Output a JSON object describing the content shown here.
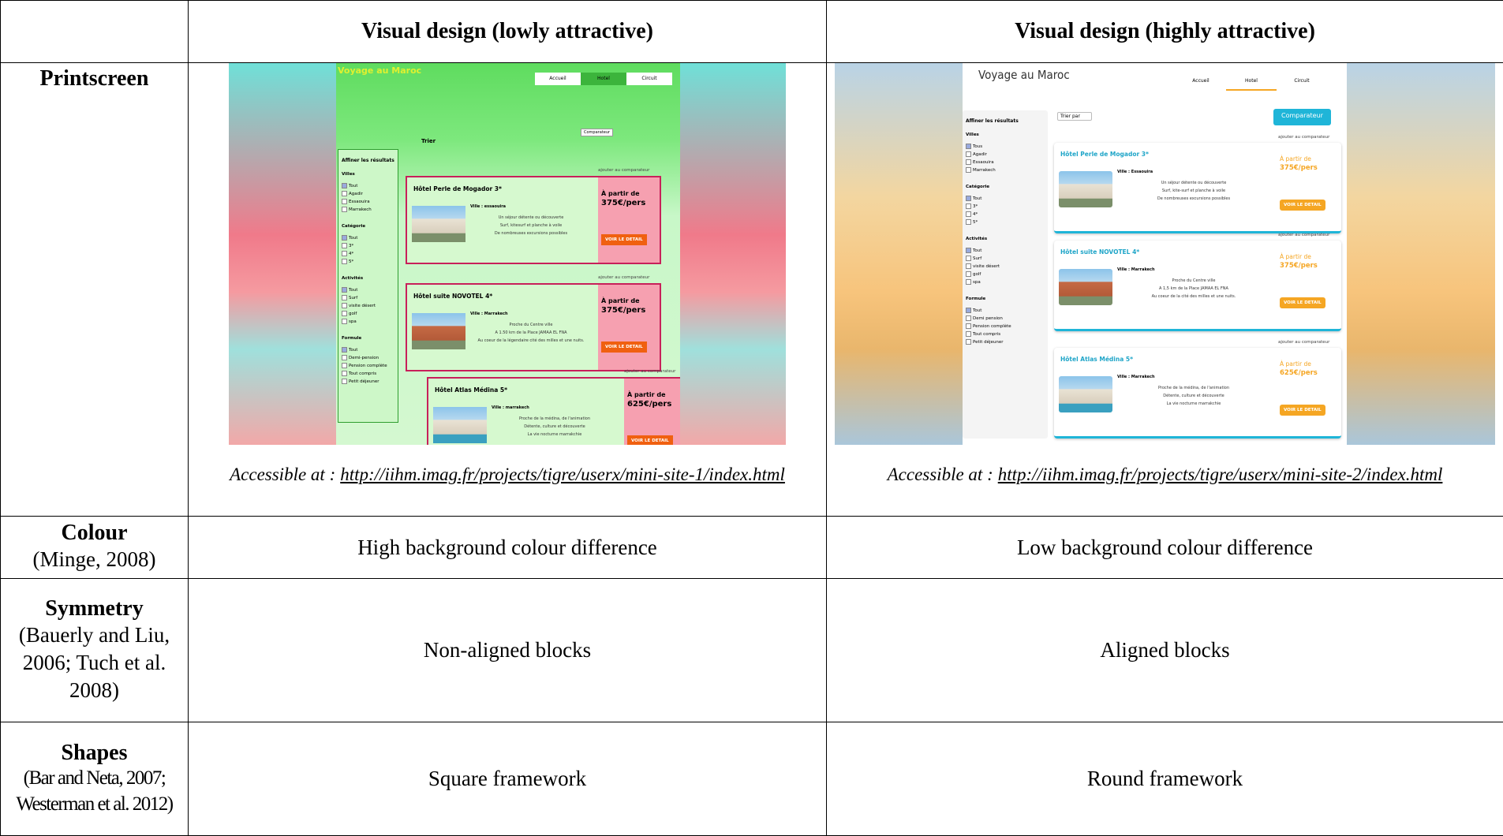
{
  "table": {
    "columns": [
      "Visual design (lowly attractive)",
      "Visual design (highly attractive)"
    ],
    "rows": [
      {
        "label": "Printscreen",
        "cells": [
          {
            "caption": "Accessible at :",
            "link": "http://iihm.imag.fr/projects/tigre/userx/mini-site-1/index.html"
          },
          {
            "caption": "Accessible at :",
            "link": "http://iihm.imag.fr/projects/tigre/userx/mini-site-2/index.html"
          }
        ]
      },
      {
        "label": "Colour",
        "citation": "(Minge, 2008)",
        "cells": [
          "High background colour difference",
          "Low background colour difference"
        ]
      },
      {
        "label": "Symmetry",
        "citation": "(Bauerly and Liu, 2006; Tuch et al. 2008)",
        "cells": [
          "Non-aligned blocks",
          "Aligned blocks"
        ]
      },
      {
        "label": "Shapes",
        "citation": "(Bar and Neta, 2007; Westerman et al. 2012)",
        "cells": [
          "Square framework",
          "Round framework"
        ]
      }
    ]
  },
  "screenshots": [
    {
      "site_title": "Voyage au Maroc",
      "nav": [
        "Accueil",
        "Hotel",
        "Circuit"
      ],
      "sort_label": "Trier",
      "compare_button": "Comparateur",
      "filter_title": "Affiner les résultats",
      "filter_groups": [
        {
          "title": "Villes",
          "options": [
            "Tout",
            "Agadir",
            "Essaouira",
            "Marrakech"
          ]
        },
        {
          "title": "Catégorie",
          "options": [
            "Tout",
            "3*",
            "4*",
            "5*"
          ]
        },
        {
          "title": "Activités",
          "options": [
            "Tout",
            "Surf",
            "visite désert",
            "golf",
            "spa"
          ]
        },
        {
          "title": "Formule",
          "options": [
            "Tout",
            "Demi-pension",
            "Pension complète",
            "Tout compris",
            "Petit déjeuner"
          ]
        }
      ],
      "compare_label": "ajouter au comparateur",
      "price_prefix": "À partir de",
      "detail_button": "VOIR LE DETAIL",
      "hotels": [
        {
          "name": "Hôtel Perle de Mogador 3*",
          "city": "Ville : essaouira",
          "price": "375€/pers",
          "features": [
            "Un séjour détente ou découverte",
            "Surf, kitesurf et planche à voile",
            "De nombreuses excursions possibles"
          ]
        },
        {
          "name": "Hôtel suite NOVOTEL 4*",
          "city": "Ville : Marrakech",
          "price": "375€/pers",
          "features": [
            "Proche du Centre ville",
            "A 1.50 km de la Place JAMAA EL FNA",
            "Au coeur de la légendaire cité des milles et une nuits."
          ]
        },
        {
          "name": "Hôtel Atlas Médina 5*",
          "city": "Ville : marrakech",
          "price": "625€/pers",
          "features": [
            "Proche de la médina, de l'animation",
            "Détente, culture et découverte",
            "La vie nocturne marrakchie"
          ]
        }
      ]
    },
    {
      "site_title": "Voyage au Maroc",
      "nav": [
        "Accueil",
        "Hotel",
        "Circuit"
      ],
      "sort_label": "Trier par",
      "compare_button": "Comparateur",
      "filter_title": "Affiner les résultats",
      "filter_groups": [
        {
          "title": "Villes",
          "options": [
            "Tous",
            "Agadir",
            "Essaouira",
            "Marrakech"
          ]
        },
        {
          "title": "Catégorie",
          "options": [
            "Tout",
            "3*",
            "4*",
            "5*"
          ]
        },
        {
          "title": "Activités",
          "options": [
            "Tout",
            "Surf",
            "visite désert",
            "golf",
            "spa"
          ]
        },
        {
          "title": "Formule",
          "options": [
            "Tout",
            "Demi pension",
            "Pension complète",
            "Tout compris",
            "Petit déjeuner"
          ]
        }
      ],
      "compare_label": "ajouter au comparateur",
      "price_prefix": "À partir de",
      "detail_button": "VOIR LE DETAIL",
      "hotels": [
        {
          "name": "Hôtel Perle de Mogador 3*",
          "city": "Ville : Essaouira",
          "price": "375€/pers",
          "features": [
            "Un séjour détente ou découverte",
            "Surf, kite-surf et planche à voile",
            "De nombreuses excursions possibles"
          ]
        },
        {
          "name": "Hôtel suite NOVOTEL 4*",
          "city": "Ville : Marrakech",
          "price": "375€/pers",
          "features": [
            "Proche du Centre ville",
            "A 1,5 km de la Place JAMAA EL FNA",
            "Au coeur de la cité des milles et une nuits."
          ]
        },
        {
          "name": "Hôtel Atlas Médina 5*",
          "city": "Ville : Marrakech",
          "price": "625€/pers",
          "features": [
            "Proche de la médina, de l'animation",
            "Détente, culture et découverte",
            "La vie nocturne marrakchie"
          ]
        }
      ]
    }
  ]
}
